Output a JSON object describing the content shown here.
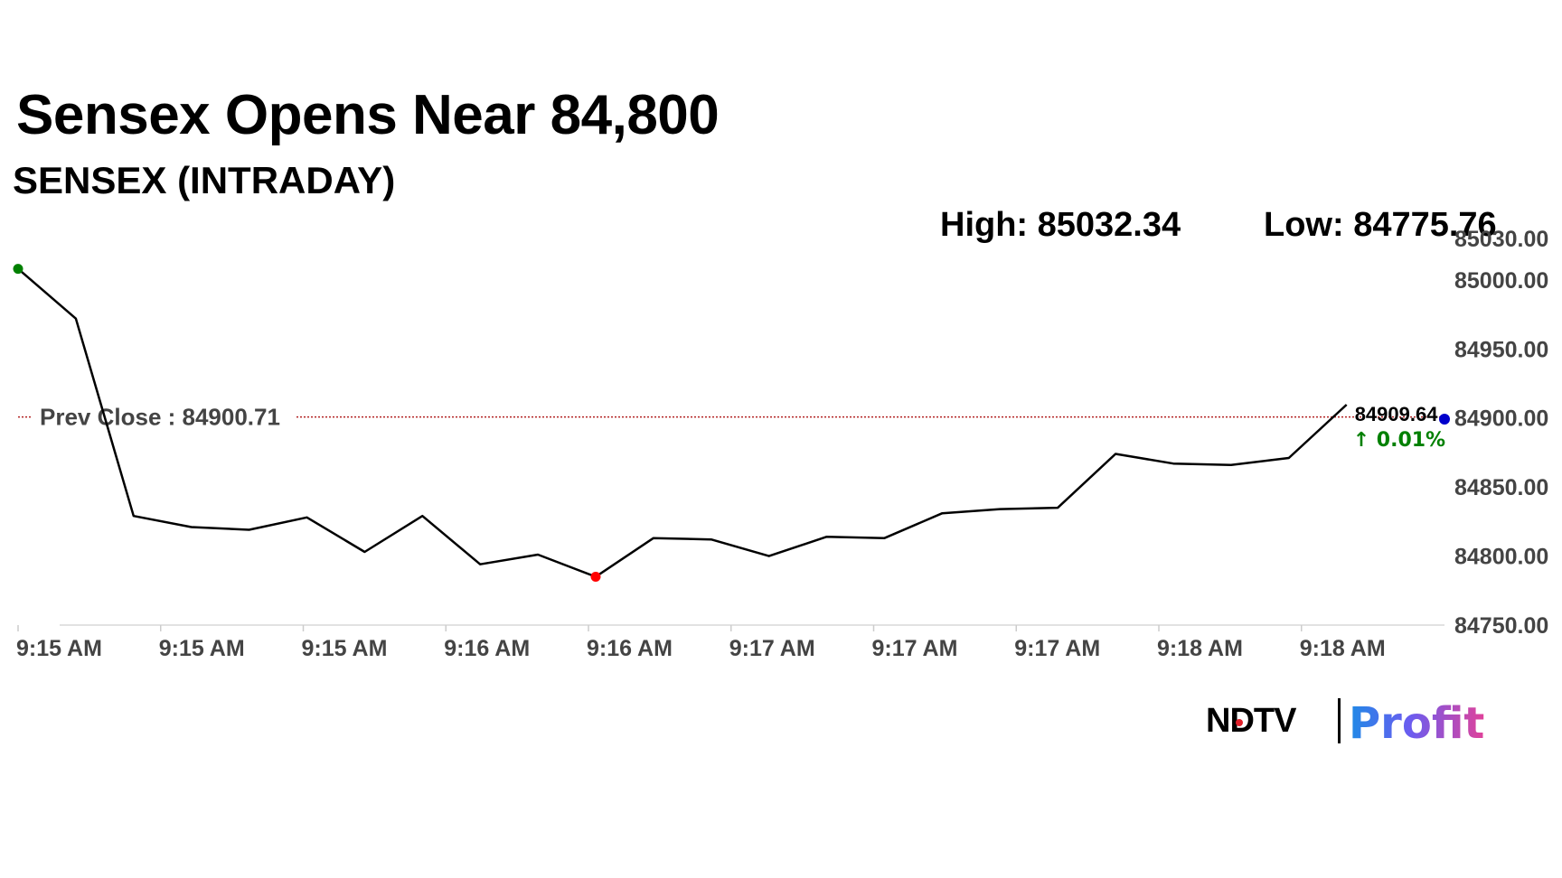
{
  "headline": "Sensex Opens Near 84,800",
  "subhead": "SENSEX (INTRADAY)",
  "high_text": "High: 85032.34",
  "low_text": "Low: 84775.76",
  "logo": {
    "ndtv": "NDTV",
    "profit": "Profit"
  },
  "colors": {
    "line": "#000000",
    "prev_close_line": "#b22222",
    "start_marker": "#008000",
    "low_marker": "#ff0000",
    "end_marker": "#0000cc",
    "change_up": "#008000"
  },
  "chart_data": {
    "type": "line",
    "title": "",
    "xlabel": "",
    "ylabel": "",
    "ylim": [
      84750,
      85030
    ],
    "y_ticks": [
      "84750.00",
      "84800.00",
      "84850.00",
      "84900.00",
      "84950.00",
      "85000.00",
      "85030.00"
    ],
    "y_tick_values": [
      84750,
      84800,
      84850,
      84900,
      84950,
      85000,
      85030
    ],
    "x_tick_labels": [
      "9:15 AM",
      "9:15 AM",
      "9:15 AM",
      "9:16 AM",
      "9:16 AM",
      "9:17 AM",
      "9:17 AM",
      "9:17 AM",
      "9:18 AM",
      "9:18 AM"
    ],
    "x_tick_indices": [
      0,
      2.5,
      5,
      7.5,
      10,
      12.5,
      15,
      17.5,
      20,
      22.5
    ],
    "values": [
      85008,
      84972,
      84829,
      84821,
      84819,
      84828,
      84803,
      84829,
      84794,
      84801,
      84785,
      84813,
      84812,
      84800,
      84814,
      84813,
      84831,
      84834,
      84835,
      84874,
      84867,
      84866,
      84871,
      84909.64
    ],
    "prev_close": {
      "label": "Prev Close : 84900.71",
      "value": 84900.71
    },
    "last": {
      "label": "84909.64",
      "change": "↑ 0.01%"
    },
    "grid": false,
    "legend": "none"
  }
}
